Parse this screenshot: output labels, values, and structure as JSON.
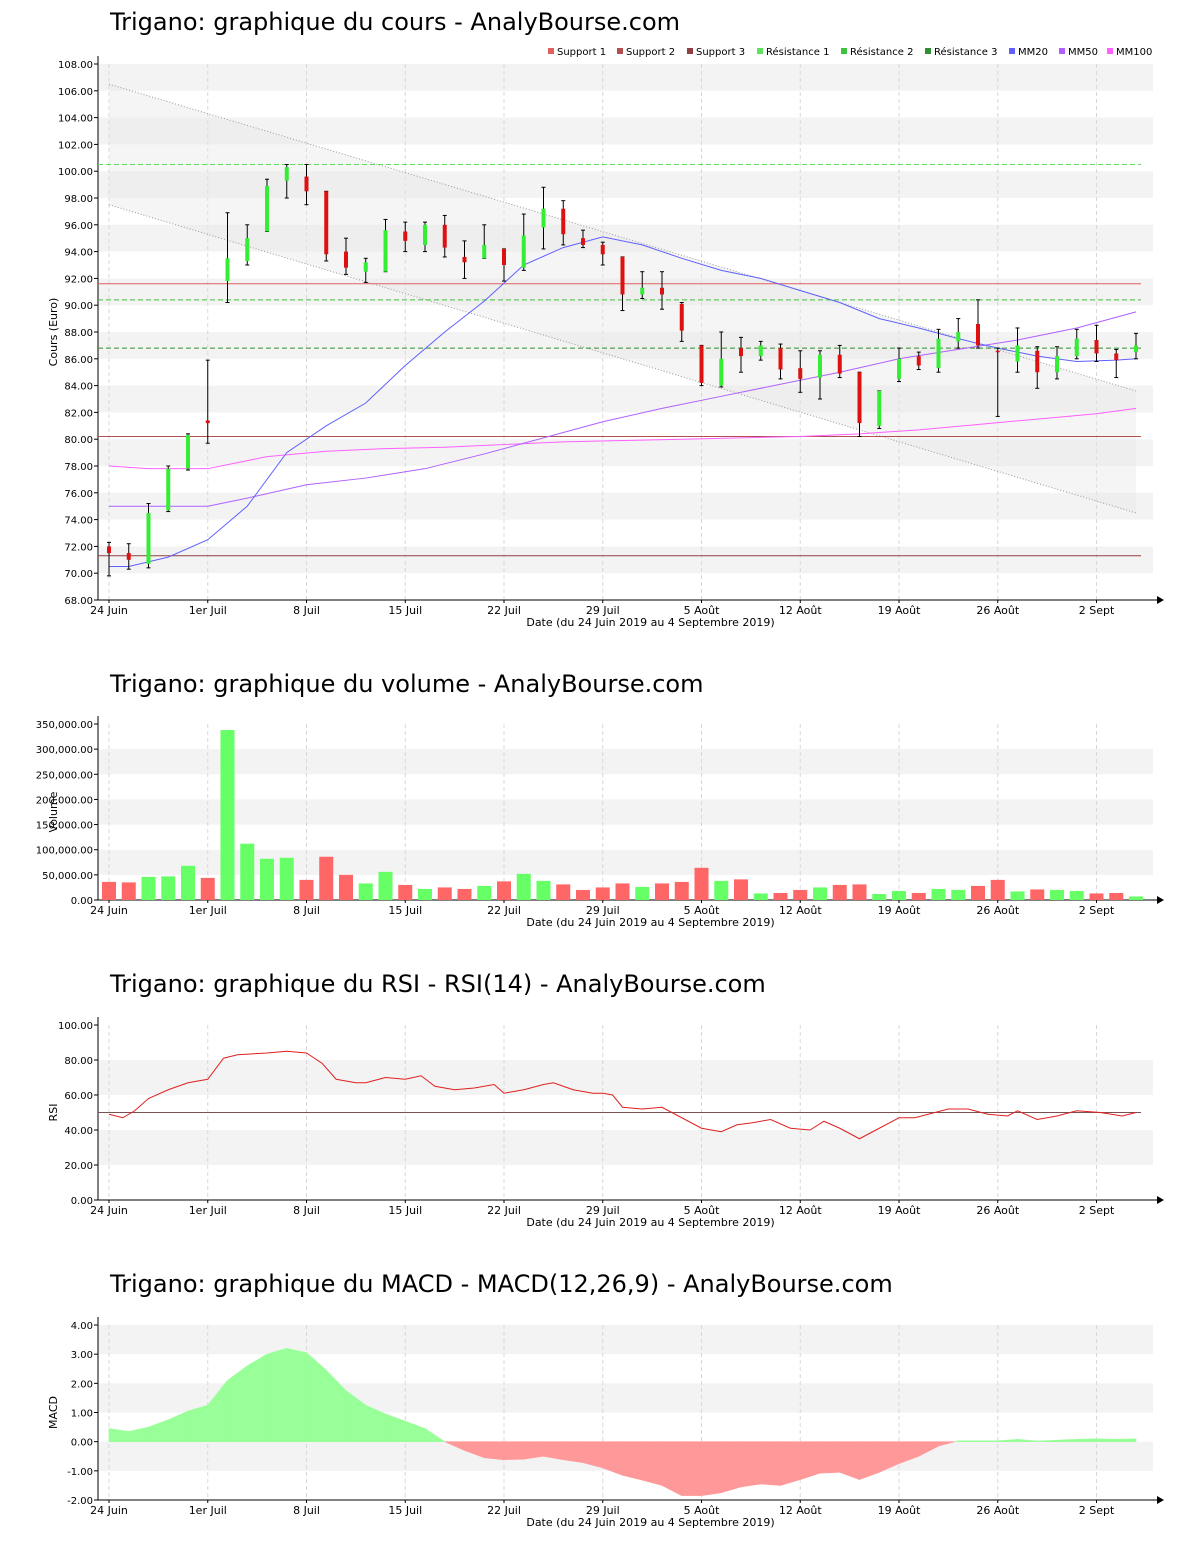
{
  "chart_data": [
    {
      "type": "candlestick",
      "title": "Trigano: graphique du cours - AnalyBourse.com",
      "xlabel": "Date (du 24 Juin 2019 au 4 Septembre 2019)",
      "ylabel": "Cours (Euro)",
      "ylim": [
        68,
        108
      ],
      "yticks": [
        "68.00",
        "70.00",
        "72.00",
        "74.00",
        "76.00",
        "78.00",
        "80.00",
        "82.00",
        "84.00",
        "86.00",
        "88.00",
        "90.00",
        "92.00",
        "94.00",
        "96.00",
        "98.00",
        "100.00",
        "102.00",
        "104.00",
        "106.00",
        "108.00"
      ],
      "xticks": [
        {
          "i": 0,
          "label": "24 Juin"
        },
        {
          "i": 5,
          "label": "1er Juil"
        },
        {
          "i": 10,
          "label": "8 Juil"
        },
        {
          "i": 15,
          "label": "15 Juil"
        },
        {
          "i": 20,
          "label": "22 Juil"
        },
        {
          "i": 25,
          "label": "29 Juil"
        },
        {
          "i": 30,
          "label": "5 Août"
        },
        {
          "i": 35,
          "label": "12 Août"
        },
        {
          "i": 40,
          "label": "19 Août"
        },
        {
          "i": 45,
          "label": "26 Août"
        },
        {
          "i": 50,
          "label": "2 Sept"
        }
      ],
      "legend_position": "top-right",
      "legend": [
        {
          "name": "Support 1",
          "color": "#e06060"
        },
        {
          "name": "Support 2",
          "color": "#b05050"
        },
        {
          "name": "Support 3",
          "color": "#904040"
        },
        {
          "name": "Résistance 1",
          "color": "#60e060"
        },
        {
          "name": "Résistance 2",
          "color": "#40c040"
        },
        {
          "name": "Résistance 3",
          "color": "#309030"
        },
        {
          "name": "MM20",
          "color": "#6060ff"
        },
        {
          "name": "MM50",
          "color": "#b060ff"
        },
        {
          "name": "MM100",
          "color": "#ff60ff"
        }
      ],
      "supports": [
        91.6,
        80.2,
        71.3
      ],
      "resistances": [
        100.5,
        90.4,
        86.8
      ],
      "channel_upper": {
        "x": [
          0,
          52
        ],
        "y": [
          106.5,
          83.6
        ]
      },
      "channel_lower": {
        "x": [
          0,
          52
        ],
        "y": [
          97.5,
          74.5
        ]
      },
      "candles": [
        {
          "o": 72.0,
          "h": 72.3,
          "l": 69.8,
          "c": 71.5
        },
        {
          "o": 71.5,
          "h": 72.2,
          "l": 70.3,
          "c": 71.0
        },
        {
          "o": 70.7,
          "h": 75.2,
          "l": 70.4,
          "c": 74.5
        },
        {
          "o": 74.7,
          "h": 78.0,
          "l": 74.6,
          "c": 77.8
        },
        {
          "o": 77.8,
          "h": 80.4,
          "l": 77.7,
          "c": 80.3
        },
        {
          "o": 81.4,
          "h": 85.9,
          "l": 79.7,
          "c": 81.2
        },
        {
          "o": 91.8,
          "h": 96.9,
          "l": 90.2,
          "c": 93.5
        },
        {
          "o": 93.3,
          "h": 96.0,
          "l": 93.0,
          "c": 95.0
        },
        {
          "o": 95.5,
          "h": 99.4,
          "l": 95.5,
          "c": 98.9
        },
        {
          "o": 99.3,
          "h": 100.5,
          "l": 98.0,
          "c": 100.3
        },
        {
          "o": 99.6,
          "h": 100.5,
          "l": 97.5,
          "c": 98.5
        },
        {
          "o": 98.5,
          "h": 98.5,
          "l": 93.3,
          "c": 93.8
        },
        {
          "o": 94.0,
          "h": 95.0,
          "l": 92.3,
          "c": 92.8
        },
        {
          "o": 92.5,
          "h": 93.5,
          "l": 91.7,
          "c": 93.2
        },
        {
          "o": 92.5,
          "h": 96.4,
          "l": 92.5,
          "c": 95.6
        },
        {
          "o": 95.5,
          "h": 96.2,
          "l": 94.0,
          "c": 94.8
        },
        {
          "o": 94.5,
          "h": 96.2,
          "l": 94.0,
          "c": 96.0
        },
        {
          "o": 96.0,
          "h": 96.7,
          "l": 93.6,
          "c": 94.3
        },
        {
          "o": 93.6,
          "h": 94.8,
          "l": 92.0,
          "c": 93.2
        },
        {
          "o": 93.5,
          "h": 96.0,
          "l": 93.5,
          "c": 94.5
        },
        {
          "o": 94.2,
          "h": 94.2,
          "l": 91.8,
          "c": 93.0
        },
        {
          "o": 92.8,
          "h": 96.8,
          "l": 92.6,
          "c": 95.2
        },
        {
          "o": 95.8,
          "h": 98.8,
          "l": 94.2,
          "c": 97.2
        },
        {
          "o": 97.2,
          "h": 97.8,
          "l": 94.5,
          "c": 95.3
        },
        {
          "o": 95.0,
          "h": 95.6,
          "l": 94.3,
          "c": 94.5
        },
        {
          "o": 94.5,
          "h": 94.7,
          "l": 93.0,
          "c": 93.8
        },
        {
          "o": 93.6,
          "h": 93.6,
          "l": 89.6,
          "c": 90.8
        },
        {
          "o": 90.8,
          "h": 92.5,
          "l": 90.5,
          "c": 91.3
        },
        {
          "o": 91.3,
          "h": 92.5,
          "l": 89.7,
          "c": 90.8
        },
        {
          "o": 90.1,
          "h": 90.2,
          "l": 87.3,
          "c": 88.1
        },
        {
          "o": 87.0,
          "h": 87.0,
          "l": 84.0,
          "c": 84.2
        },
        {
          "o": 84.0,
          "h": 88.0,
          "l": 83.9,
          "c": 86.0
        },
        {
          "o": 86.8,
          "h": 87.6,
          "l": 85.0,
          "c": 86.2
        },
        {
          "o": 86.2,
          "h": 87.3,
          "l": 85.9,
          "c": 87.0
        },
        {
          "o": 86.8,
          "h": 87.1,
          "l": 84.5,
          "c": 85.2
        },
        {
          "o": 85.3,
          "h": 86.6,
          "l": 83.5,
          "c": 84.5
        },
        {
          "o": 84.6,
          "h": 86.6,
          "l": 83.0,
          "c": 86.3
        },
        {
          "o": 86.3,
          "h": 87.0,
          "l": 84.6,
          "c": 84.9
        },
        {
          "o": 85.0,
          "h": 85.0,
          "l": 80.2,
          "c": 81.2
        },
        {
          "o": 81.0,
          "h": 83.6,
          "l": 80.8,
          "c": 83.6
        },
        {
          "o": 84.5,
          "h": 86.8,
          "l": 84.3,
          "c": 86.0
        },
        {
          "o": 86.2,
          "h": 86.5,
          "l": 85.2,
          "c": 85.5
        },
        {
          "o": 85.3,
          "h": 88.2,
          "l": 85.0,
          "c": 87.5
        },
        {
          "o": 87.3,
          "h": 89.0,
          "l": 86.8,
          "c": 88.0
        },
        {
          "o": 88.6,
          "h": 90.4,
          "l": 86.8,
          "c": 87.0
        },
        {
          "o": 86.6,
          "h": 86.8,
          "l": 81.7,
          "c": 86.5
        },
        {
          "o": 85.8,
          "h": 88.3,
          "l": 85.0,
          "c": 87.0
        },
        {
          "o": 86.6,
          "h": 86.9,
          "l": 83.8,
          "c": 85.0
        },
        {
          "o": 85.0,
          "h": 86.9,
          "l": 84.5,
          "c": 86.2
        },
        {
          "o": 86.2,
          "h": 88.2,
          "l": 86.0,
          "c": 87.5
        },
        {
          "o": 87.4,
          "h": 88.5,
          "l": 85.8,
          "c": 86.4
        },
        {
          "o": 86.4,
          "h": 86.7,
          "l": 84.6,
          "c": 85.9
        },
        {
          "o": 86.5,
          "h": 87.9,
          "l": 86.0,
          "c": 87.0
        }
      ],
      "mm20": {
        "x": [
          0,
          1,
          3,
          5,
          7,
          9,
          11,
          13,
          15,
          17,
          19,
          21,
          23,
          25,
          27,
          29,
          31,
          33,
          35,
          37,
          39,
          41,
          43,
          45,
          47,
          49,
          51,
          52
        ],
        "y": [
          70.5,
          70.5,
          71.2,
          72.5,
          75.0,
          79.0,
          81.0,
          82.7,
          85.5,
          88.0,
          90.3,
          93.0,
          94.3,
          95.1,
          94.5,
          93.5,
          92.6,
          92.0,
          91.1,
          90.2,
          89.0,
          88.3,
          87.5,
          86.8,
          86.2,
          85.8,
          85.9,
          86.0
        ]
      },
      "mm50": {
        "x": [
          0,
          5,
          7,
          10,
          13,
          16,
          19,
          22,
          25,
          28,
          31,
          34,
          37,
          40,
          43,
          46,
          49,
          52
        ],
        "y": [
          75.0,
          75.0,
          75.6,
          76.6,
          77.1,
          77.8,
          78.9,
          80.1,
          81.3,
          82.3,
          83.2,
          84.1,
          85.0,
          86.0,
          86.7,
          87.4,
          88.3,
          89.5
        ]
      },
      "mm100": {
        "x": [
          0,
          2,
          5,
          8,
          11,
          14,
          17,
          20,
          23,
          26,
          29,
          32,
          35,
          38,
          41,
          44,
          47,
          50,
          52
        ],
        "y": [
          78.0,
          77.8,
          77.8,
          78.7,
          79.1,
          79.3,
          79.4,
          79.6,
          79.8,
          79.9,
          80.0,
          80.1,
          80.2,
          80.4,
          80.7,
          81.1,
          81.5,
          81.9,
          82.3
        ]
      }
    },
    {
      "type": "bar",
      "title": "Trigano: graphique du volume - AnalyBourse.com",
      "xlabel": "Date (du 24 Juin 2019 au 4 Septembre 2019)",
      "ylabel": "Volume",
      "ylim": [
        0,
        350000
      ],
      "yticks": [
        "0.00",
        "50,000.00",
        "100,000.00",
        "150,000.00",
        "200,000.00",
        "250,000.00",
        "300,000.00",
        "350,000.00"
      ],
      "xticks": [
        {
          "i": 0,
          "label": "24 Juin"
        },
        {
          "i": 5,
          "label": "1er Juil"
        },
        {
          "i": 10,
          "label": "8 Juil"
        },
        {
          "i": 15,
          "label": "15 Juil"
        },
        {
          "i": 20,
          "label": "22 Juil"
        },
        {
          "i": 25,
          "label": "29 Juil"
        },
        {
          "i": 30,
          "label": "5 Août"
        },
        {
          "i": 35,
          "label": "12 Août"
        },
        {
          "i": 40,
          "label": "19 Août"
        },
        {
          "i": 45,
          "label": "26 Août"
        },
        {
          "i": 50,
          "label": "2 Sept"
        }
      ],
      "values": [
        36000,
        35000,
        46000,
        47000,
        68000,
        44000,
        338000,
        112000,
        82000,
        84000,
        40000,
        86000,
        50000,
        33000,
        56000,
        30000,
        22000,
        25000,
        22000,
        28000,
        37000,
        52000,
        38000,
        31000,
        20000,
        25000,
        33000,
        26000,
        33000,
        36000,
        64000,
        38000,
        41000,
        13000,
        14000,
        20000,
        25000,
        30000,
        31000,
        12000,
        18000,
        14000,
        22000,
        20000,
        28000,
        40000,
        17000,
        21000,
        20000,
        18000,
        13000,
        14000,
        7000
      ]
    },
    {
      "type": "line",
      "title": "Trigano: graphique du RSI - RSI(14) - AnalyBourse.com",
      "xlabel": "Date (du 24 Juin 2019 au 4 Septembre 2019)",
      "ylabel": "RSI",
      "ylim": [
        0,
        100
      ],
      "yticks": [
        "0.00",
        "20.00",
        "40.00",
        "60.00",
        "80.00",
        "100.00"
      ],
      "xticks": [
        {
          "i": 0,
          "label": "24 Juin"
        },
        {
          "i": 5,
          "label": "1er Juil"
        },
        {
          "i": 10,
          "label": "8 Juil"
        },
        {
          "i": 15,
          "label": "15 Juil"
        },
        {
          "i": 20,
          "label": "22 Juil"
        },
        {
          "i": 25,
          "label": "29 Juil"
        },
        {
          "i": 30,
          "label": "5 Août"
        },
        {
          "i": 35,
          "label": "12 Août"
        },
        {
          "i": 40,
          "label": "19 Août"
        },
        {
          "i": 45,
          "label": "26 Août"
        },
        {
          "i": 50,
          "label": "2 Sept"
        }
      ],
      "reference_line": 50,
      "values": [
        49,
        47,
        51,
        58,
        63,
        67,
        69,
        81,
        83,
        84,
        85,
        84,
        78,
        69,
        67,
        67,
        70,
        69,
        71,
        65,
        63,
        64,
        66,
        61,
        63,
        66,
        67,
        63,
        61,
        61,
        60,
        53,
        52,
        53,
        47,
        41,
        39,
        43,
        44,
        46,
        41,
        40,
        45,
        41,
        35,
        41,
        47,
        47,
        52,
        52,
        49,
        48,
        51,
        46,
        48,
        51,
        50,
        48,
        50
      ],
      "x": [
        0,
        0.7,
        1.3,
        2,
        3,
        4,
        5,
        5.8,
        6.5,
        8,
        9,
        10,
        10.8,
        11.5,
        12.5,
        13,
        14,
        15,
        15.8,
        16.5,
        17.5,
        18.5,
        19.5,
        20,
        21,
        22,
        22.5,
        23.5,
        24.5,
        25,
        25.5,
        26,
        27,
        28,
        29,
        30,
        31,
        31.8,
        32.5,
        33.5,
        34.5,
        35.5,
        36.2,
        37,
        38,
        39,
        40,
        40.8,
        42.5,
        43.5,
        44.5,
        45.5,
        46,
        47,
        48,
        49,
        50.2,
        51.3,
        52
      ]
    },
    {
      "type": "area",
      "title": "Trigano: graphique du MACD - MACD(12,26,9) - AnalyBourse.com",
      "xlabel": "Date (du 24 Juin 2019 au 4 Septembre 2019)",
      "ylabel": "MACD",
      "ylim": [
        -2,
        4
      ],
      "yticks": [
        "-2.00",
        "-1.00",
        "0.00",
        "1.00",
        "2.00",
        "3.00",
        "4.00"
      ],
      "xticks": [
        {
          "i": 0,
          "label": "24 Juin"
        },
        {
          "i": 5,
          "label": "1er Juil"
        },
        {
          "i": 10,
          "label": "8 Juil"
        },
        {
          "i": 15,
          "label": "15 Juil"
        },
        {
          "i": 20,
          "label": "22 Juil"
        },
        {
          "i": 25,
          "label": "29 Juil"
        },
        {
          "i": 30,
          "label": "5 Août"
        },
        {
          "i": 35,
          "label": "12 Août"
        },
        {
          "i": 40,
          "label": "19 Août"
        },
        {
          "i": 45,
          "label": "26 Août"
        },
        {
          "i": 50,
          "label": "2 Sept"
        }
      ],
      "x": [
        0,
        1,
        2,
        3,
        4,
        5,
        6,
        7,
        8,
        9,
        10,
        11,
        12,
        13,
        14,
        15,
        16,
        17,
        18,
        19,
        20,
        21,
        22,
        23,
        24,
        25,
        26,
        27,
        28,
        29,
        30,
        31,
        32,
        33,
        34,
        35,
        36,
        37,
        38,
        39,
        40,
        41,
        42,
        43,
        44,
        45,
        46,
        47,
        48,
        49,
        50,
        51,
        52
      ],
      "values": [
        0.45,
        0.35,
        0.5,
        0.75,
        1.05,
        1.25,
        2.1,
        2.6,
        3.0,
        3.2,
        3.05,
        2.45,
        1.75,
        1.25,
        0.95,
        0.7,
        0.45,
        0.0,
        -0.3,
        -0.55,
        -0.62,
        -0.6,
        -0.5,
        -0.62,
        -0.72,
        -0.9,
        -1.15,
        -1.32,
        -1.5,
        -1.85,
        -1.85,
        -1.75,
        -1.55,
        -1.45,
        -1.5,
        -1.3,
        -1.08,
        -1.05,
        -1.3,
        -1.05,
        -0.75,
        -0.5,
        -0.15,
        0.03,
        0.03,
        0.03,
        0.08,
        0.02,
        0.05,
        0.08,
        0.1,
        0.08,
        0.1
      ]
    }
  ]
}
